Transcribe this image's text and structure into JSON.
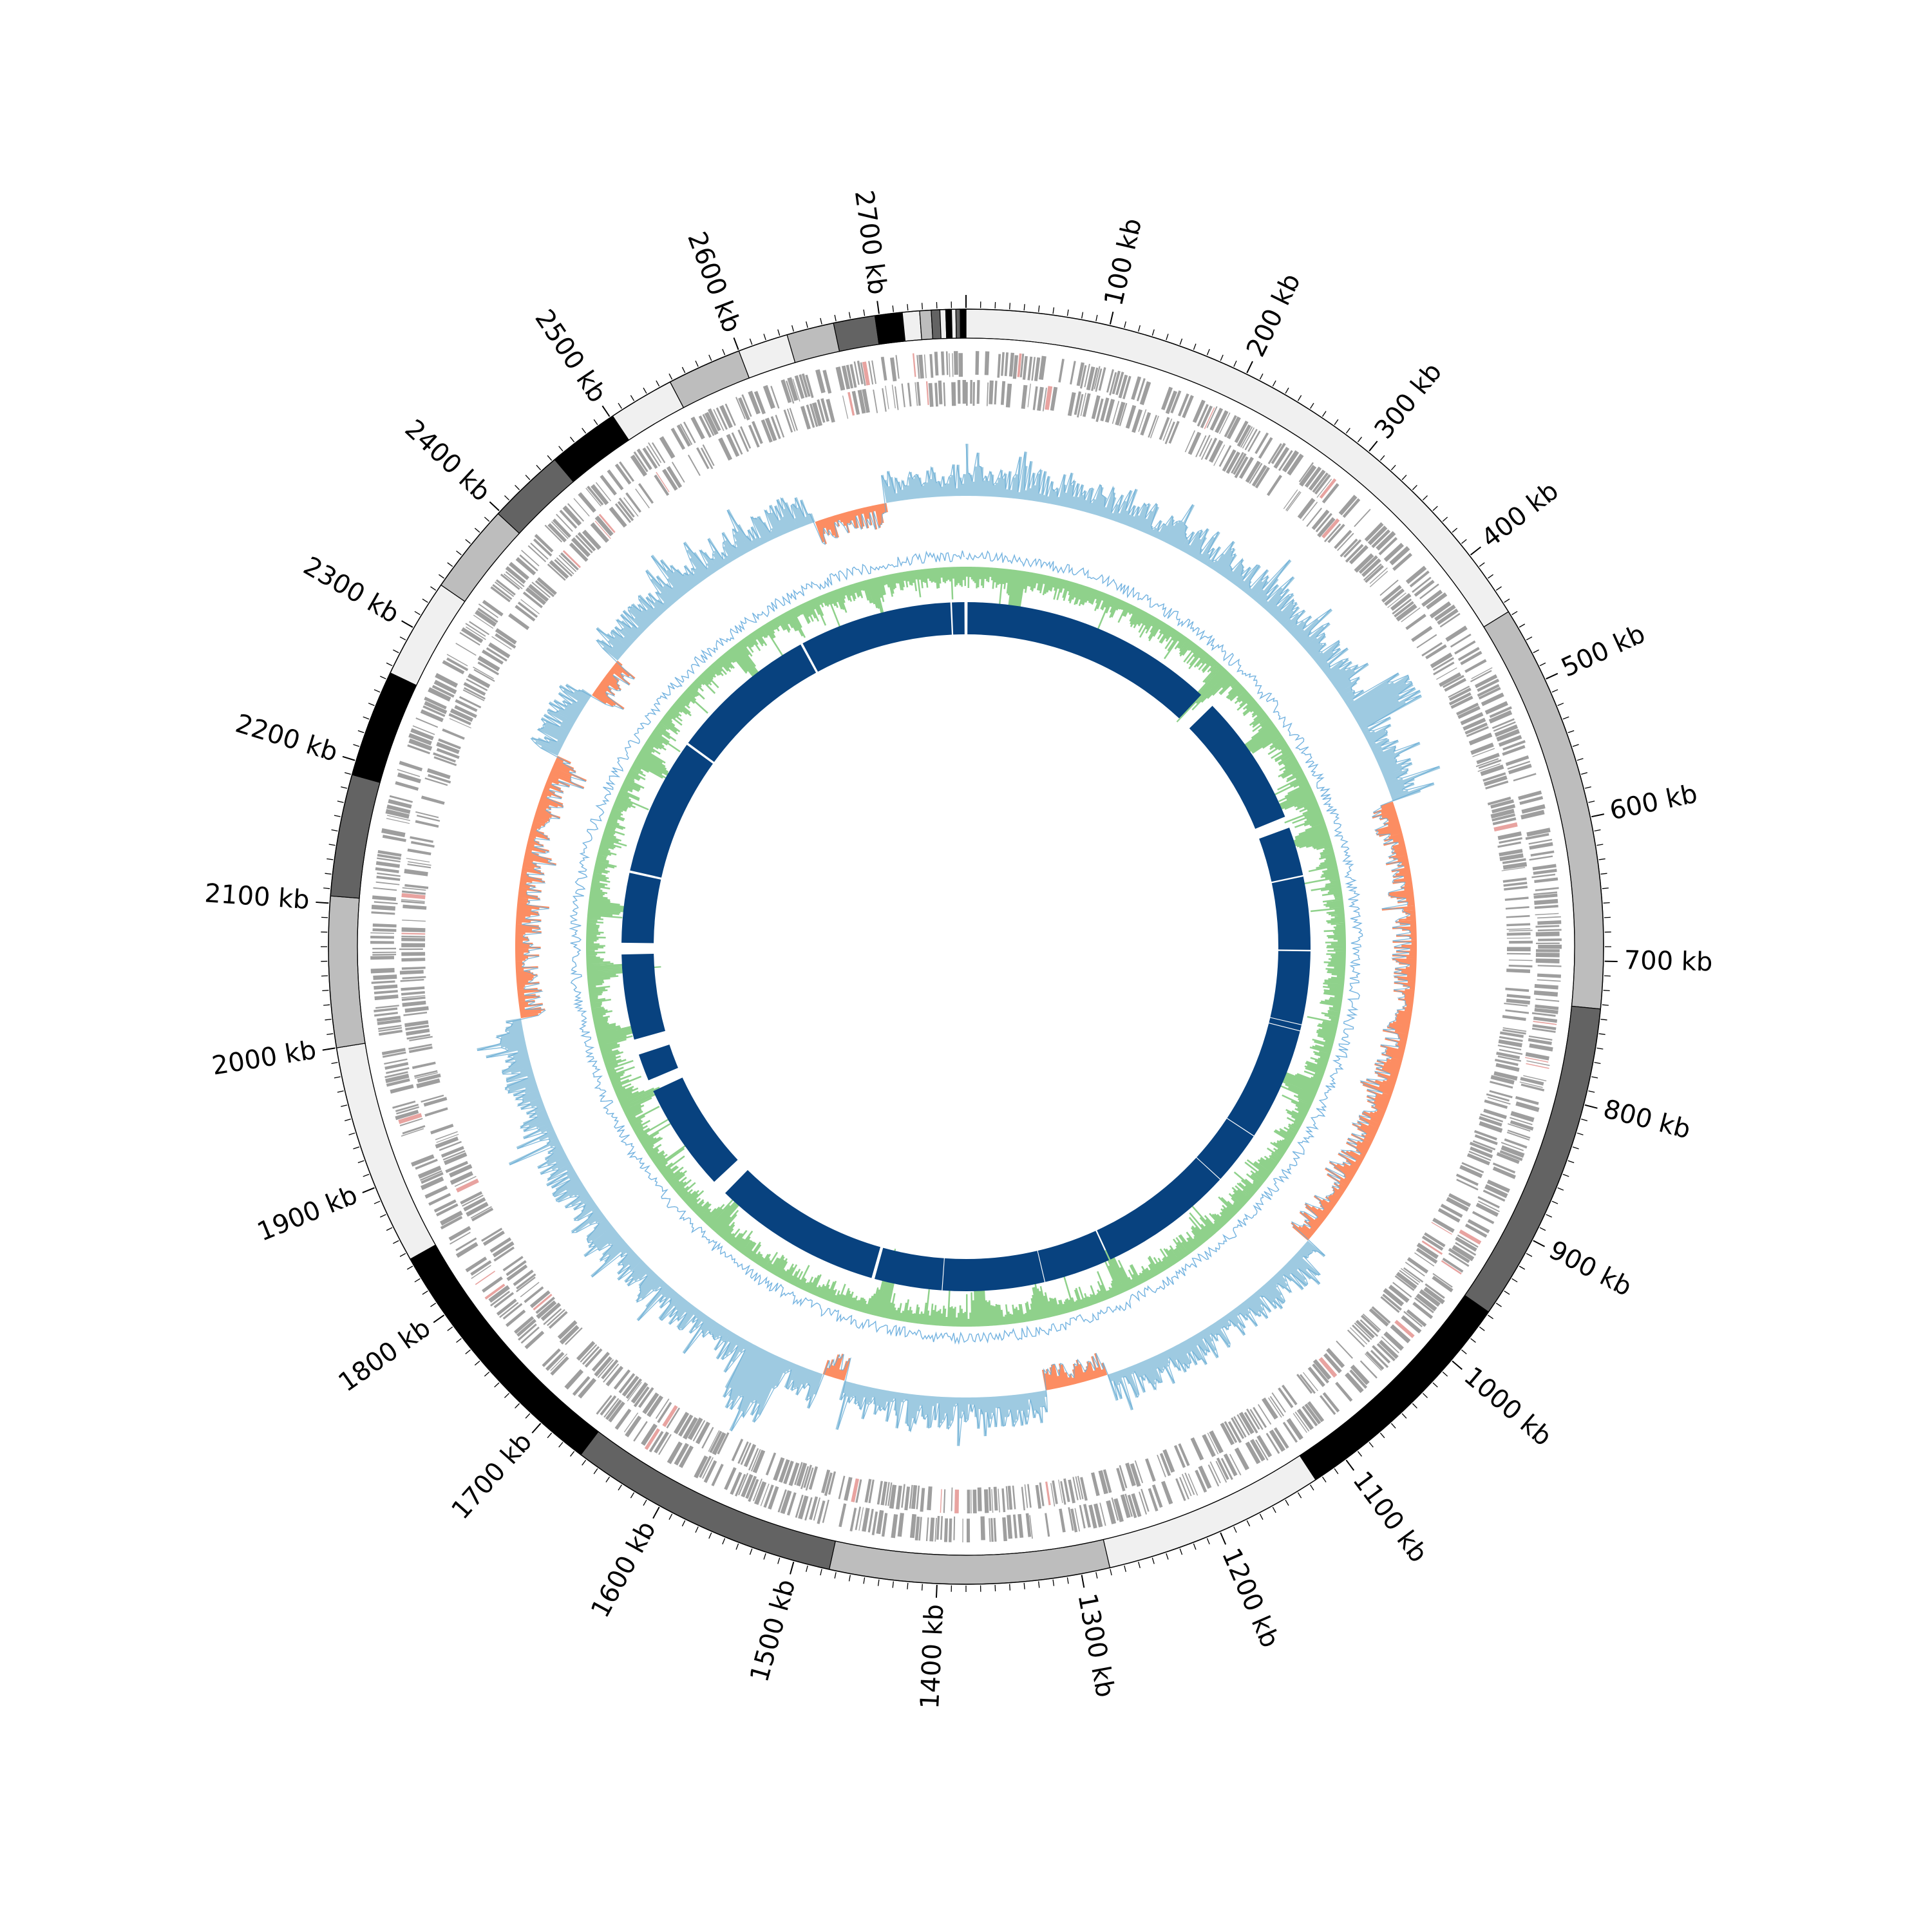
{
  "genome": {
    "length_kb": 2760,
    "unit": "kb",
    "tick_labels": [
      {
        "pos": 100,
        "text": "100 kb"
      },
      {
        "pos": 200,
        "text": "200 kb"
      },
      {
        "pos": 300,
        "text": "300 kb"
      },
      {
        "pos": 400,
        "text": "400 kb"
      },
      {
        "pos": 500,
        "text": "500 kb"
      },
      {
        "pos": 600,
        "text": "600 kb"
      },
      {
        "pos": 700,
        "text": "700 kb"
      },
      {
        "pos": 800,
        "text": "800 kb"
      },
      {
        "pos": 900,
        "text": "900 kb"
      },
      {
        "pos": 1000,
        "text": "1000 kb"
      },
      {
        "pos": 1100,
        "text": "1100 kb"
      },
      {
        "pos": 1200,
        "text": "1200 kb"
      },
      {
        "pos": 1300,
        "text": "1300 kb"
      },
      {
        "pos": 1400,
        "text": "1400 kb"
      },
      {
        "pos": 1500,
        "text": "1500 kb"
      },
      {
        "pos": 1600,
        "text": "1600 kb"
      },
      {
        "pos": 1700,
        "text": "1700 kb"
      },
      {
        "pos": 1800,
        "text": "1800 kb"
      },
      {
        "pos": 1900,
        "text": "1900 kb"
      },
      {
        "pos": 2000,
        "text": "2000 kb"
      },
      {
        "pos": 2100,
        "text": "2100 kb"
      },
      {
        "pos": 2200,
        "text": "2200 kb"
      },
      {
        "pos": 2300,
        "text": "2300 kb"
      },
      {
        "pos": 2400,
        "text": "2400 kb"
      },
      {
        "pos": 2500,
        "text": "2500 kb"
      },
      {
        "pos": 2600,
        "text": "2600 kb"
      },
      {
        "pos": 2700,
        "text": "2700 kb"
      }
    ]
  },
  "contigs": [
    {
      "start": 0,
      "end": 447,
      "color": "#f0f0f0"
    },
    {
      "start": 447,
      "end": 733,
      "color": "#bdbdbd"
    },
    {
      "start": 733,
      "end": 958,
      "color": "#636363"
    },
    {
      "start": 958,
      "end": 1125,
      "color": "#000000"
    },
    {
      "start": 1125,
      "end": 1280,
      "color": "#f0f0f0"
    },
    {
      "start": 1280,
      "end": 1475,
      "color": "#bdbdbd"
    },
    {
      "start": 1475,
      "end": 1665,
      "color": "#636363"
    },
    {
      "start": 1665,
      "end": 1845,
      "color": "#000000"
    },
    {
      "start": 1845,
      "end": 2000,
      "color": "#f0f0f0"
    },
    {
      "start": 2000,
      "end": 2105,
      "color": "#bdbdbd"
    },
    {
      "start": 2105,
      "end": 2190,
      "color": "#636363"
    },
    {
      "start": 2190,
      "end": 2265,
      "color": "#000000"
    },
    {
      "start": 2265,
      "end": 2335,
      "color": "#f0f0f0"
    },
    {
      "start": 2335,
      "end": 2398,
      "color": "#bdbdbd"
    },
    {
      "start": 2398,
      "end": 2452,
      "color": "#636363"
    },
    {
      "start": 2452,
      "end": 2502,
      "color": "#000000"
    },
    {
      "start": 2502,
      "end": 2548,
      "color": "#f0f0f0"
    },
    {
      "start": 2548,
      "end": 2600,
      "color": "#bdbdbd"
    },
    {
      "start": 2600,
      "end": 2635,
      "color": "#f0f0f0"
    },
    {
      "start": 2635,
      "end": 2668,
      "color": "#bdbdbd"
    },
    {
      "start": 2668,
      "end": 2697,
      "color": "#636363"
    },
    {
      "start": 2697,
      "end": 2716,
      "color": "#000000"
    },
    {
      "start": 2716,
      "end": 2728,
      "color": "#f0f0f0"
    },
    {
      "start": 2728,
      "end": 2736,
      "color": "#bdbdbd"
    },
    {
      "start": 2736,
      "end": 2742,
      "color": "#636363"
    },
    {
      "start": 2742,
      "end": 2746,
      "color": "#f0f0f0"
    },
    {
      "start": 2746,
      "end": 2750,
      "color": "#000000"
    },
    {
      "start": 2750,
      "end": 2753,
      "color": "#f0f0f0"
    },
    {
      "start": 2753,
      "end": 2756,
      "color": "#636363"
    },
    {
      "start": 2756,
      "end": 2760,
      "color": "#000000"
    }
  ],
  "tracks": {
    "gene_color": "#9e9e9e",
    "gene_accent_color": "#e8a3a0",
    "gc_skew": {
      "positive_color": "#9ecae1",
      "negative_color": "#fc8d62",
      "line_color": "#6baed6"
    },
    "gc_content": {
      "fill_color": "#8fd18b",
      "line_color": "#74b3e0"
    },
    "blast": {
      "color": "#08427f"
    }
  },
  "gc_skew_negative_regions": [
    [
      545,
      1000
    ],
    [
      1240,
      1300
    ],
    [
      1500,
      1520
    ],
    [
      2000,
      2260
    ],
    [
      2330,
      2370
    ],
    [
      2610,
      2680
    ]
  ],
  "gc_content_peaks": [
    [
      60,
      1.0
    ],
    [
      330,
      0.9
    ],
    [
      420,
      0.8
    ],
    [
      505,
      0.6
    ],
    [
      555,
      0.75
    ],
    [
      860,
      0.9
    ],
    [
      1190,
      0.5
    ],
    [
      1290,
      0.6
    ],
    [
      1360,
      0.7
    ],
    [
      1480,
      0.8
    ],
    [
      1700,
      0.6
    ],
    [
      1880,
      0.5
    ],
    [
      1960,
      0.6
    ],
    [
      2040,
      0.9
    ],
    [
      2115,
      0.7
    ],
    [
      2300,
      0.6
    ],
    [
      2470,
      0.6
    ],
    [
      2650,
      0.5
    ]
  ],
  "blast_blocks": [
    [
      2,
      330
    ],
    [
      350,
      520
    ],
    [
      535,
      598
    ],
    [
      600,
      694
    ],
    [
      696,
      790
    ],
    [
      791,
      798
    ],
    [
      799,
      945
    ],
    [
      946,
      1015
    ],
    [
      1016,
      1190
    ],
    [
      1192,
      1278
    ],
    [
      1279,
      1410
    ],
    [
      1411,
      1498
    ],
    [
      1502,
      1720
    ],
    [
      1740,
      1880
    ],
    [
      1895,
      1930
    ],
    [
      1950,
      2060
    ],
    [
      2075,
      2165
    ],
    [
      2168,
      2345
    ],
    [
      2348,
      2540
    ],
    [
      2543,
      2740
    ],
    [
      2742,
      2758
    ]
  ]
}
